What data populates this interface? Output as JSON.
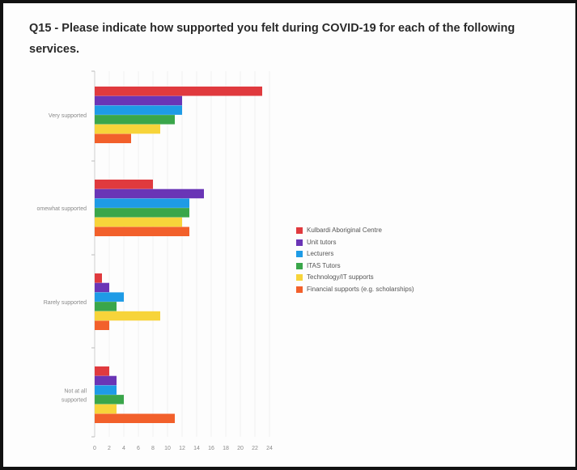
{
  "title": "Q15 - Please indicate how supported you felt during COVID-19 for each of the following services.",
  "chart_data": {
    "type": "bar",
    "orientation": "horizontal",
    "categories": [
      "Very supported",
      "omewhat supported",
      "Rarely supported",
      "Not at all supported"
    ],
    "series": [
      {
        "name": "Kulbardi Aboriginal Centre",
        "color": "#e03a3e",
        "values": [
          23,
          8,
          1,
          2
        ]
      },
      {
        "name": "Unit tutors",
        "color": "#6a35b6",
        "values": [
          12,
          15,
          2,
          3
        ]
      },
      {
        "name": "Lecturers",
        "color": "#1e9be6",
        "values": [
          12,
          13,
          4,
          3
        ]
      },
      {
        "name": "ITAS Tutors",
        "color": "#3aa64a",
        "values": [
          11,
          13,
          3,
          4
        ]
      },
      {
        "name": "Technology/IT supports",
        "color": "#f7d43a",
        "values": [
          9,
          12,
          9,
          3
        ]
      },
      {
        "name": "Financial supports (e.g. scholarships)",
        "color": "#f2602b",
        "values": [
          5,
          13,
          2,
          11
        ]
      }
    ],
    "xlim": [
      0,
      24
    ],
    "xticks": [
      "0",
      "2",
      "4",
      "6",
      "8",
      "10",
      "12",
      "14",
      "16",
      "18",
      "20",
      "22",
      "24"
    ],
    "legend_position": "right",
    "grid": true
  }
}
